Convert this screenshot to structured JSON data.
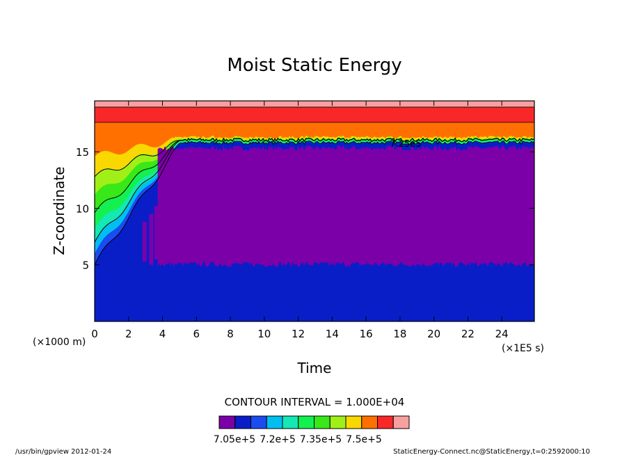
{
  "chart_data": {
    "type": "heatmap",
    "title": "Moist Static Energy",
    "xlabel": "Time",
    "ylabel": "Z-coordinate",
    "x_unit": "(×1E5 s)",
    "y_unit": "(×1000 m)",
    "xlim": [
      0,
      25.92
    ],
    "ylim": [
      0,
      19.5
    ],
    "x_ticks": [
      0,
      2,
      4,
      6,
      8,
      10,
      12,
      14,
      16,
      18,
      20,
      22,
      24
    ],
    "y_ticks": [
      5,
      10,
      15
    ],
    "contour_interval": "CONTOUR INTERVAL = 1.000E+04",
    "contour_label": "7.25e5",
    "colorbar": {
      "colors": [
        "#7c00a8",
        "#0a1ec8",
        "#1a4cf0",
        "#00bff0",
        "#14e8b4",
        "#14f050",
        "#38e818",
        "#a0f018",
        "#f8d800",
        "#ff7000",
        "#f82828",
        "#f8a0a0"
      ],
      "tick_labels": [
        "7.05e+5",
        "7.2e+5",
        "7.35e+5",
        "7.5e+5"
      ]
    },
    "layers_top_of_domain": [
      {
        "z_from": 18.95,
        "z_to": 19.5,
        "value_band": "> 7.6e5"
      },
      {
        "z_from": 17.6,
        "z_to": 18.95,
        "value_band": "7.55e5-7.6e5"
      },
      {
        "z_from": 16.2,
        "z_to": 17.6,
        "value_band": "7.5e5-7.55e5"
      }
    ],
    "grid": false
  },
  "footer": {
    "left": "/usr/bin/gpview  2012-01-24",
    "right": "StaticEnergy-Connect.nc@StaticEnergy,t=0:2592000:10"
  }
}
